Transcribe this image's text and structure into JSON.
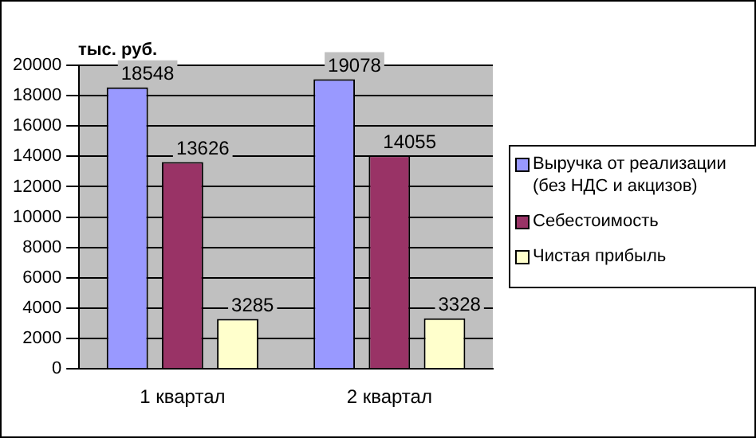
{
  "chart_data": {
    "type": "bar",
    "ylabel": "тыс. руб.",
    "categories": [
      "1 квартал",
      "2 квартал"
    ],
    "series": [
      {
        "name": "Выручка от реализации (без НДС и акцизов)",
        "color": "#9999ff",
        "values": [
          18548,
          19078
        ]
      },
      {
        "name": "Себестоимость",
        "color": "#993366",
        "values": [
          13626,
          14055
        ]
      },
      {
        "name": "Чистая прибыль",
        "color": "#ffffcc",
        "values": [
          3285,
          3328
        ]
      }
    ],
    "ylim": [
      0,
      20000
    ],
    "yticks": [
      0,
      2000,
      4000,
      6000,
      8000,
      10000,
      12000,
      14000,
      16000,
      18000,
      20000
    ],
    "grid": "y",
    "legend": "right",
    "data_labels": true
  }
}
